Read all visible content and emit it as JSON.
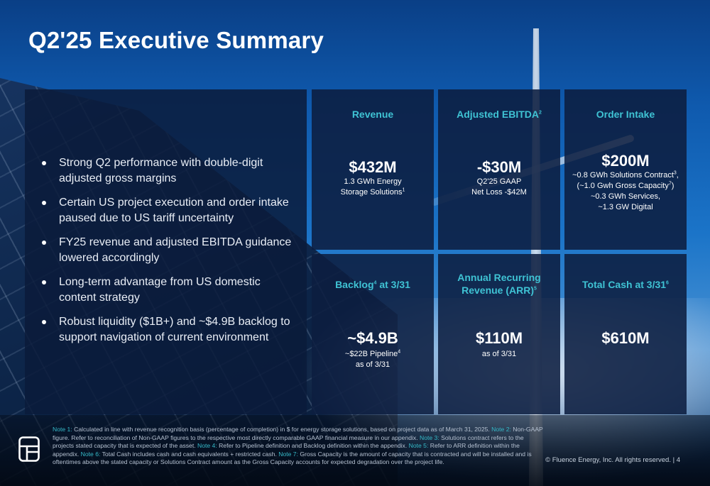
{
  "title": "Q2'25 Executive Summary",
  "bullets": [
    "Strong Q2 performance with double-digit adjusted gross margins",
    "Certain US project execution and order intake paused due to US tariff uncertainty",
    "FY25 revenue and adjusted EBITDA guidance lowered accordingly",
    "Long-term advantage from US domestic content strategy",
    "Robust liquidity ($1B+) and ~$4.9B backlog to support navigation of current environment"
  ],
  "tiles": {
    "revenue": {
      "heading": "Revenue",
      "value": "$432M",
      "sub1": "1.3 GWh Energy",
      "sub2": "Storage Solutions",
      "sub2_sup": "1"
    },
    "ebitda": {
      "heading": "Adjusted EBITDA",
      "heading_sup": "2",
      "value": "-$30M",
      "sub1": "Q2'25 GAAP",
      "sub2": "Net Loss -$42M"
    },
    "order_intake": {
      "heading": "Order Intake",
      "value": "$200M",
      "line1": "~0.8 GWh Solutions Contract",
      "line1_sup": "3",
      "line1_end": ",",
      "line2": "(~1.0 Gwh Gross Capacity",
      "line2_sup": "7",
      "line2_end": ")",
      "line3": "~0.3 GWh Services,",
      "line4": "~1.3 GW Digital"
    },
    "backlog": {
      "heading_a": "Backlog",
      "heading_sup": "4",
      "heading_b": " at 3/31",
      "value": "~$4.9B",
      "sub1": "~$22B Pipeline",
      "sub1_sup": "4",
      "sub2": "as of 3/31"
    },
    "arr": {
      "heading1": "Annual Recurring",
      "heading2": "Revenue (ARR)",
      "heading_sup": "5",
      "value": "$110M",
      "sub1": "as of 3/31"
    },
    "cash": {
      "heading": "Total Cash at 3/31",
      "heading_sup": "6",
      "value": "$610M"
    }
  },
  "footnotes": [
    {
      "label": "Note 1:",
      "text": " Calculated in line with revenue recognition basis (percentage of completion) in $ for energy storage solutions, based on project data as of March 31, 2025. "
    },
    {
      "label": "Note 2:",
      "text": " Non-GAAP figure. Refer to reconciliation of Non-GAAP figures to the  respective most directly comparable GAAP financial measure in our appendix.  "
    },
    {
      "label": "Note 3:",
      "text": " Solutions contract refers to the projects stated capacity that is expected of the asset. "
    },
    {
      "label": "Note 4:",
      "text": "  Refer to Pipeline definition and Backlog definition within the appendix.  "
    },
    {
      "label": "Note 5:",
      "text": "  Refer to ARR definition within the appendix. "
    },
    {
      "label": "Note 6:",
      "text": "  Total Cash includes cash and cash equivalents + restricted cash. "
    },
    {
      "label": "Note 7:",
      "text": " Gross Capacity is the amount of capacity that is contracted and will be installed and is oftentimes above the stated capacity or Solutions Contract amount as the Gross Capacity accounts for expected degradation over the project life."
    }
  ],
  "copyright": "© Fluence Energy, Inc. All rights reserved. | 4",
  "colors": {
    "heading_teal": "#3fc3d4",
    "panel_navy": "#0c1e40"
  },
  "icons": {
    "logo": "fluence-logo-icon"
  }
}
